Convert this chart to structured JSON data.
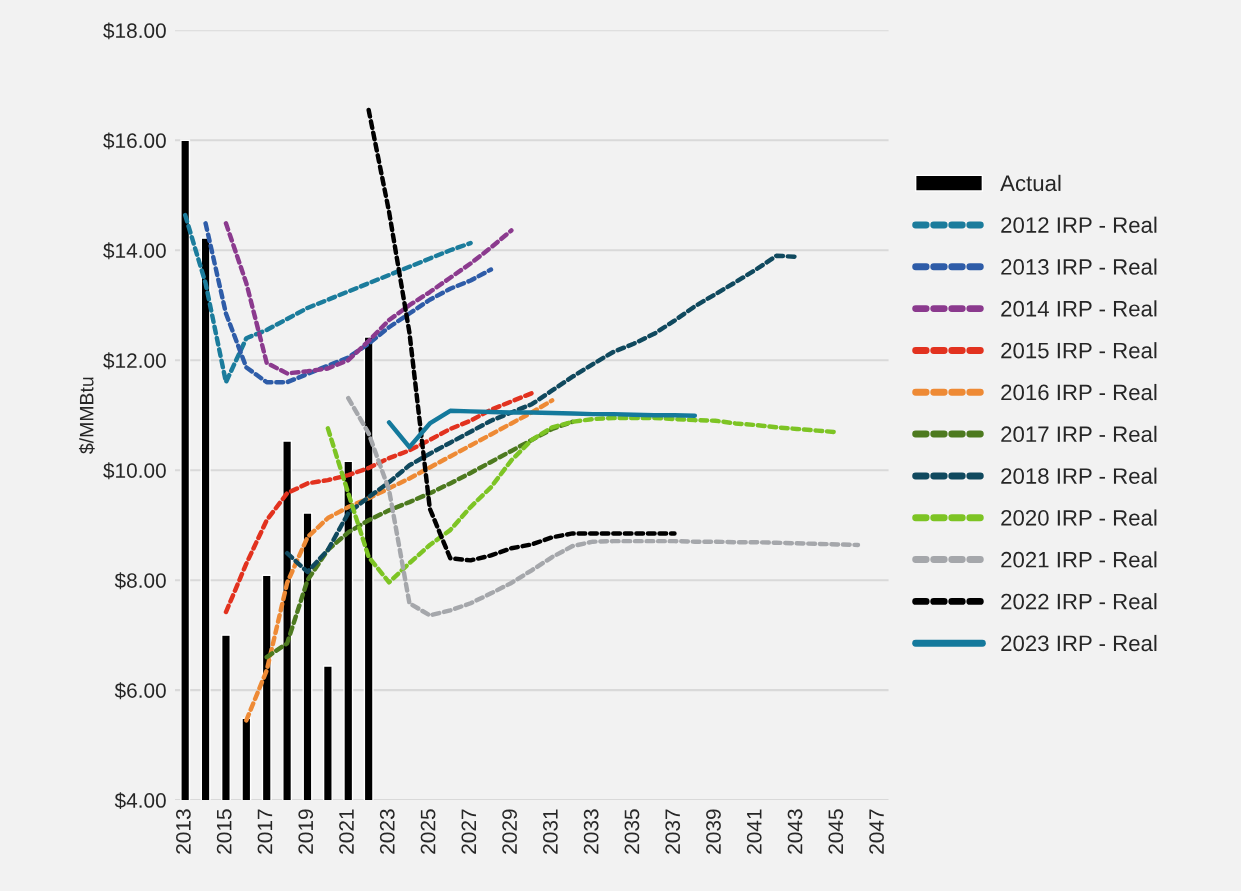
{
  "chart_data": {
    "type": "line",
    "ylabel": "$/MMBtu",
    "xlim": [
      2012.5,
      2047.5
    ],
    "xticks": [
      2013,
      2015,
      2017,
      2019,
      2021,
      2023,
      2025,
      2027,
      2029,
      2031,
      2033,
      2035,
      2037,
      2039,
      2041,
      2043,
      2045,
      2047
    ],
    "ylim": [
      4,
      18
    ],
    "yticks": [
      {
        "value": 4,
        "label": "$4.00"
      },
      {
        "value": 6,
        "label": "$6.00"
      },
      {
        "value": 8,
        "label": "$8.00"
      },
      {
        "value": 10,
        "label": "$10.00"
      },
      {
        "value": 12,
        "label": "$12.00"
      },
      {
        "value": 14,
        "label": "$14.00"
      },
      {
        "value": 16,
        "label": "$16.00"
      },
      {
        "value": 18,
        "label": "$18.00"
      }
    ],
    "grid": "y",
    "legend": "right",
    "series": [
      {
        "name": "Actual",
        "type": "bar",
        "color": "#000000",
        "x": [
          2013,
          2014,
          2015,
          2016,
          2017,
          2018,
          2019,
          2020,
          2021,
          2022
        ],
        "values": [
          16.0,
          14.22,
          7.0,
          5.49,
          8.09,
          10.53,
          9.22,
          6.44,
          10.16,
          12.42
        ]
      },
      {
        "name": "2012 IRP - Real",
        "line_style": "dashed",
        "color": "#1b7c9c",
        "x": [
          2013,
          2014,
          2015,
          2016,
          2017,
          2018,
          2019,
          2020,
          2021,
          2022,
          2023,
          2024,
          2025,
          2026,
          2027
        ],
        "values": [
          14.64,
          13.4,
          11.6,
          12.4,
          12.55,
          12.75,
          12.95,
          13.1,
          13.25,
          13.4,
          13.55,
          13.7,
          13.85,
          14.0,
          14.13
        ]
      },
      {
        "name": "2013 IRP - Real",
        "line_style": "dashed",
        "color": "#2e5ca8",
        "x": [
          2014,
          2015,
          2016,
          2017,
          2018,
          2019,
          2020,
          2021,
          2022,
          2023,
          2024,
          2025,
          2026,
          2027,
          2028
        ],
        "values": [
          14.49,
          12.85,
          11.87,
          11.6,
          11.6,
          11.75,
          11.9,
          12.05,
          12.3,
          12.6,
          12.85,
          13.1,
          13.3,
          13.45,
          13.65
        ]
      },
      {
        "name": "2014 IRP - Real",
        "line_style": "dashed",
        "color": "#8b3a8e",
        "x": [
          2015,
          2016,
          2017,
          2018,
          2019,
          2020,
          2021,
          2022,
          2023,
          2024,
          2025,
          2026,
          2027,
          2028,
          2029
        ],
        "values": [
          14.49,
          13.4,
          11.95,
          11.76,
          11.8,
          11.85,
          12.0,
          12.35,
          12.73,
          13.0,
          13.24,
          13.5,
          13.76,
          14.05,
          14.36
        ]
      },
      {
        "name": "2015 IRP - Real",
        "line_style": "dashed",
        "color": "#e2321f",
        "x": [
          2015,
          2016,
          2017,
          2018,
          2019,
          2020,
          2021,
          2022,
          2023,
          2024,
          2025,
          2026,
          2027,
          2028,
          2029,
          2030
        ],
        "values": [
          7.42,
          8.3,
          9.09,
          9.58,
          9.76,
          9.82,
          9.91,
          10.04,
          10.22,
          10.36,
          10.55,
          10.75,
          10.9,
          11.1,
          11.25,
          11.4
        ]
      },
      {
        "name": "2016 IRP - Real",
        "line_style": "dashed",
        "color": "#ee8a35",
        "x": [
          2016,
          2017,
          2018,
          2019,
          2020,
          2021,
          2022,
          2023,
          2024,
          2025,
          2026,
          2027,
          2028,
          2029,
          2030,
          2031
        ],
        "values": [
          5.45,
          6.36,
          7.95,
          8.78,
          9.13,
          9.33,
          9.49,
          9.67,
          9.85,
          10.05,
          10.25,
          10.45,
          10.65,
          10.85,
          11.05,
          11.27
        ]
      },
      {
        "name": "2017 IRP - Real",
        "line_style": "dashed",
        "color": "#4d7a1f",
        "x": [
          2017,
          2018,
          2019,
          2020,
          2021,
          2022,
          2023,
          2024,
          2025,
          2026,
          2027,
          2028,
          2029,
          2030,
          2031,
          2032
        ],
        "values": [
          6.6,
          6.85,
          8.0,
          8.55,
          8.87,
          9.09,
          9.27,
          9.42,
          9.58,
          9.76,
          9.95,
          10.15,
          10.35,
          10.55,
          10.75,
          10.88
        ]
      },
      {
        "name": "2018 IRP - Real",
        "line_style": "dashed",
        "color": "#10495e",
        "x": [
          2018,
          2019,
          2020,
          2021,
          2022,
          2023,
          2024,
          2025,
          2026,
          2027,
          2028,
          2029,
          2030,
          2031,
          2032,
          2033,
          2034,
          2035,
          2036,
          2037,
          2038,
          2039,
          2040,
          2041,
          2042,
          2043
        ],
        "values": [
          8.49,
          8.15,
          8.55,
          9.22,
          9.51,
          9.78,
          10.09,
          10.3,
          10.5,
          10.7,
          10.9,
          11.05,
          11.2,
          11.45,
          11.7,
          11.93,
          12.15,
          12.3,
          12.48,
          12.72,
          12.98,
          13.2,
          13.42,
          13.65,
          13.9,
          13.88
        ]
      },
      {
        "name": "2020 IRP - Real",
        "line_style": "dashed",
        "color": "#7dc424",
        "x": [
          2020,
          2021,
          2022,
          2023,
          2024,
          2025,
          2026,
          2027,
          2028,
          2029,
          2030,
          2031,
          2032,
          2033,
          2034,
          2035,
          2036,
          2037,
          2038,
          2039,
          2040,
          2041,
          2042,
          2043,
          2044,
          2045
        ],
        "values": [
          10.76,
          9.58,
          8.42,
          7.96,
          8.31,
          8.64,
          8.91,
          9.33,
          9.69,
          10.18,
          10.55,
          10.78,
          10.88,
          10.93,
          10.95,
          10.95,
          10.95,
          10.93,
          10.91,
          10.9,
          10.85,
          10.82,
          10.78,
          10.75,
          10.72,
          10.69
        ]
      },
      {
        "name": "2021 IRP - Real",
        "line_style": "dashed",
        "color": "#a5a7ab",
        "x": [
          2021,
          2022,
          2023,
          2024,
          2025,
          2026,
          2027,
          2028,
          2029,
          2030,
          2031,
          2032,
          2033,
          2034,
          2035,
          2036,
          2037,
          2038,
          2039,
          2040,
          2041,
          2042,
          2043,
          2044,
          2045,
          2046
        ],
        "values": [
          11.31,
          10.67,
          9.64,
          7.58,
          7.36,
          7.45,
          7.58,
          7.76,
          7.95,
          8.18,
          8.42,
          8.62,
          8.7,
          8.71,
          8.71,
          8.71,
          8.71,
          8.7,
          8.7,
          8.69,
          8.69,
          8.68,
          8.67,
          8.66,
          8.65,
          8.64
        ]
      },
      {
        "name": "2022 IRP - Real",
        "line_style": "dashed",
        "color": "#000000",
        "x": [
          2022,
          2023,
          2024,
          2025,
          2026,
          2027,
          2028,
          2029,
          2030,
          2031,
          2032,
          2033,
          2034,
          2035,
          2036,
          2037
        ],
        "values": [
          16.55,
          14.7,
          12.5,
          9.3,
          8.4,
          8.36,
          8.45,
          8.58,
          8.65,
          8.78,
          8.85,
          8.85,
          8.85,
          8.85,
          8.85,
          8.85
        ]
      },
      {
        "name": "2023 IRP - Real",
        "line_style": "solid",
        "color": "#14799c",
        "x": [
          2023,
          2024,
          2025,
          2026,
          2027,
          2028,
          2029,
          2030,
          2031,
          2032,
          2033,
          2034,
          2035,
          2036,
          2037,
          2038
        ],
        "values": [
          10.87,
          10.42,
          10.85,
          11.08,
          11.07,
          11.06,
          11.05,
          11.05,
          11.04,
          11.03,
          11.02,
          11.02,
          11.01,
          11.0,
          11.0,
          10.99
        ]
      }
    ]
  }
}
